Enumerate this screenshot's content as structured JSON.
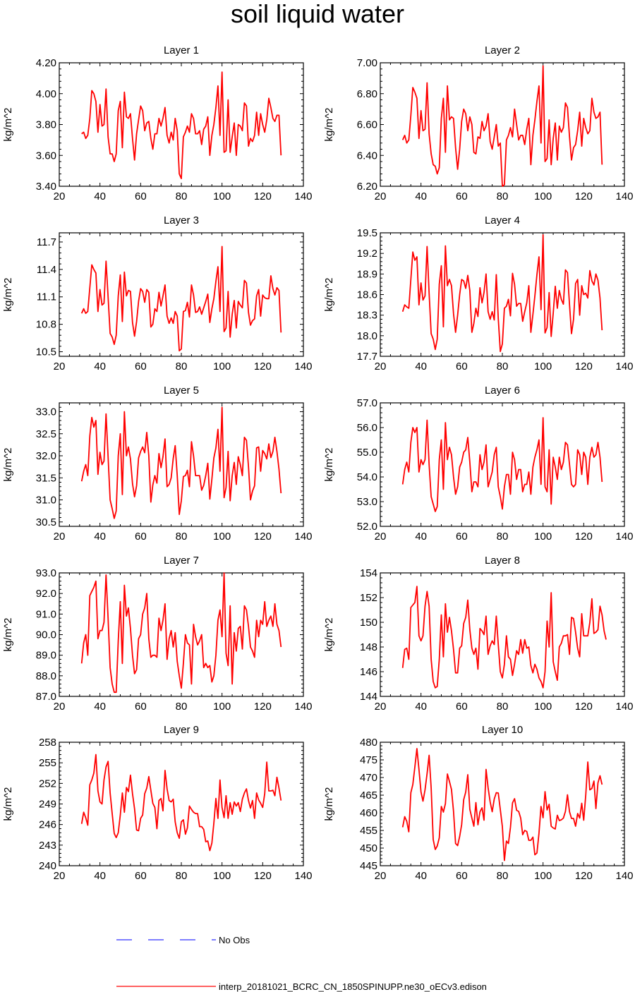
{
  "title": "soil liquid water",
  "legend": {
    "no_obs_label": "No Obs",
    "no_obs_color": "#3333ff",
    "model_label": "interp_20181021_BCRC_CN_1850SPINUPP.ne30_oECv3.edison",
    "model_color": "#ff0000"
  },
  "chart_data": [
    {
      "type": "line",
      "title": "Layer 1",
      "ylabel": "kg/m^2",
      "xlim": [
        20,
        140
      ],
      "ylim": [
        3.4,
        4.2
      ],
      "xticks": [
        "20",
        "40",
        "60",
        "80",
        "100",
        "120",
        "140"
      ],
      "yticks": [
        "3.40",
        "3.60",
        "3.80",
        "4.00",
        "4.20"
      ],
      "x_start": 31,
      "x_step": 1,
      "values": [
        3.74,
        3.75,
        3.71,
        3.73,
        3.84,
        4.02,
        4.0,
        3.95,
        3.75,
        3.93,
        3.79,
        3.8,
        4.03,
        3.72,
        3.61,
        3.61,
        3.56,
        3.61,
        3.89,
        3.95,
        3.65,
        4.01,
        3.85,
        3.84,
        3.87,
        3.71,
        3.57,
        3.74,
        3.83,
        3.92,
        3.89,
        3.76,
        3.81,
        3.82,
        3.71,
        3.64,
        3.74,
        3.74,
        3.84,
        3.79,
        3.84,
        3.91,
        3.73,
        3.68,
        3.75,
        3.7,
        3.84,
        3.76,
        3.48,
        3.45,
        3.72,
        3.75,
        3.79,
        3.75,
        3.87,
        3.84,
        3.74,
        3.74,
        3.76,
        3.67,
        3.77,
        3.79,
        3.85,
        3.6,
        3.73,
        3.8,
        3.91,
        4.05,
        3.73,
        4.14,
        3.62,
        3.63,
        3.96,
        3.62,
        3.72,
        3.81,
        3.6,
        3.8,
        3.79,
        3.76,
        3.94,
        3.92,
        3.66,
        3.71,
        3.69,
        3.73,
        3.88,
        3.73,
        3.87,
        3.8,
        3.75,
        3.83,
        3.97,
        3.91,
        3.84,
        3.82,
        3.86,
        3.86,
        3.6
      ]
    },
    {
      "type": "line",
      "title": "Layer 2",
      "ylabel": "kg/m^2",
      "xlim": [
        20,
        140
      ],
      "ylim": [
        6.2,
        7.0
      ],
      "xticks": [
        "20",
        "40",
        "60",
        "80",
        "100",
        "120",
        "140"
      ],
      "yticks": [
        "6.20",
        "6.40",
        "6.60",
        "6.80",
        "7.00"
      ],
      "x_start": 31,
      "x_step": 1,
      "values": [
        6.5,
        6.53,
        6.48,
        6.5,
        6.66,
        6.84,
        6.81,
        6.77,
        6.51,
        6.69,
        6.56,
        6.57,
        6.87,
        6.54,
        6.41,
        6.34,
        6.33,
        6.28,
        6.32,
        6.64,
        6.77,
        6.42,
        6.85,
        6.63,
        6.65,
        6.64,
        6.45,
        6.31,
        6.44,
        6.62,
        6.7,
        6.67,
        6.56,
        6.65,
        6.6,
        6.42,
        6.41,
        6.52,
        6.51,
        6.62,
        6.56,
        6.59,
        6.67,
        6.49,
        6.44,
        6.52,
        6.6,
        6.46,
        6.48,
        6.2,
        6.21,
        6.5,
        6.53,
        6.58,
        6.52,
        6.7,
        6.6,
        6.5,
        6.53,
        6.53,
        6.47,
        6.57,
        6.64,
        6.34,
        6.53,
        6.63,
        6.75,
        6.85,
        6.48,
        6.98,
        6.36,
        6.38,
        6.63,
        6.34,
        6.51,
        6.61,
        6.37,
        6.59,
        6.55,
        6.58,
        6.74,
        6.71,
        6.52,
        6.37,
        6.45,
        6.47,
        6.56,
        6.68,
        6.46,
        6.64,
        6.58,
        6.54,
        6.56,
        6.77,
        6.68,
        6.64,
        6.65,
        6.68,
        6.34
      ]
    },
    {
      "type": "line",
      "title": "Layer 3",
      "ylabel": "kg/m^2",
      "xlim": [
        20,
        140
      ],
      "ylim": [
        10.45,
        11.8
      ],
      "xticks": [
        "20",
        "40",
        "60",
        "80",
        "100",
        "120",
        "140"
      ],
      "yticks": [
        "10.5",
        "10.8",
        "11.1",
        "11.4",
        "11.7"
      ],
      "x_start": 31,
      "x_step": 1,
      "values": [
        10.92,
        10.97,
        10.92,
        10.94,
        11.2,
        11.45,
        11.4,
        11.36,
        10.94,
        11.18,
        11.01,
        11.03,
        11.49,
        11.1,
        10.7,
        10.66,
        10.58,
        10.68,
        11.11,
        11.34,
        10.83,
        11.37,
        11.11,
        11.17,
        11.16,
        10.82,
        10.67,
        10.83,
        11.05,
        11.19,
        11.16,
        11.04,
        11.18,
        11.15,
        10.77,
        10.8,
        10.97,
        10.94,
        11.15,
        11.0,
        11.11,
        11.23,
        10.89,
        10.81,
        10.87,
        10.81,
        10.94,
        10.89,
        10.51,
        10.53,
        10.94,
        10.95,
        11.04,
        10.88,
        11.23,
        11.12,
        10.93,
        10.94,
        10.99,
        10.91,
        10.98,
        11.05,
        11.13,
        10.82,
        10.97,
        11.08,
        11.27,
        11.43,
        10.94,
        11.65,
        10.72,
        10.76,
        11.16,
        10.66,
        10.91,
        11.06,
        10.76,
        11.05,
        11.01,
        10.98,
        11.28,
        11.25,
        10.93,
        10.79,
        10.84,
        10.86,
        11.11,
        11.18,
        10.89,
        11.12,
        11.09,
        11.08,
        11.08,
        11.33,
        11.19,
        11.12,
        11.2,
        11.17,
        10.71
      ]
    },
    {
      "type": "line",
      "title": "Layer 4",
      "ylabel": "kg/m^2",
      "xlim": [
        20,
        140
      ],
      "ylim": [
        17.7,
        19.5
      ],
      "xticks": [
        "20",
        "40",
        "60",
        "80",
        "100",
        "120",
        "140"
      ],
      "yticks": [
        "17.7",
        "18.0",
        "18.3",
        "18.6",
        "18.9",
        "19.2",
        "19.5"
      ],
      "x_start": 31,
      "x_step": 1,
      "values": [
        18.35,
        18.45,
        18.42,
        18.4,
        18.82,
        19.22,
        19.1,
        19.15,
        18.45,
        18.77,
        18.52,
        18.58,
        19.3,
        18.62,
        18.03,
        17.95,
        17.8,
        17.95,
        18.75,
        19.02,
        18.13,
        19.31,
        18.73,
        18.82,
        18.73,
        18.32,
        18.05,
        18.3,
        18.6,
        18.82,
        18.8,
        18.69,
        18.88,
        18.66,
        18.05,
        18.18,
        18.4,
        18.28,
        18.7,
        18.48,
        18.63,
        18.9,
        18.35,
        18.24,
        18.35,
        18.23,
        18.89,
        18.25,
        17.77,
        17.88,
        18.4,
        18.43,
        18.53,
        18.29,
        18.91,
        18.75,
        18.43,
        18.47,
        18.47,
        18.21,
        18.35,
        18.48,
        18.73,
        18.05,
        18.31,
        18.58,
        18.89,
        19.15,
        18.38,
        19.47,
        18.04,
        18.12,
        18.63,
        17.99,
        18.33,
        18.72,
        18.4,
        18.66,
        18.53,
        18.46,
        18.96,
        18.92,
        18.45,
        18.03,
        18.24,
        18.76,
        18.82,
        18.3,
        18.73,
        18.6,
        18.62,
        18.55,
        18.95,
        18.8,
        18.74,
        18.9,
        18.81,
        18.55,
        18.08
      ]
    },
    {
      "type": "line",
      "title": "Layer 5",
      "ylabel": "kg/m^2",
      "xlim": [
        20,
        140
      ],
      "ylim": [
        30.4,
        33.2
      ],
      "xticks": [
        "20",
        "40",
        "60",
        "80",
        "100",
        "120",
        "140"
      ],
      "yticks": [
        "30.5",
        "31.0",
        "31.5",
        "32.0",
        "32.5",
        "33.0"
      ],
      "x_start": 31,
      "x_step": 1,
      "values": [
        31.42,
        31.65,
        31.8,
        31.55,
        32.45,
        32.87,
        32.65,
        32.8,
        31.58,
        32.08,
        31.8,
        31.88,
        32.95,
        31.98,
        31.0,
        30.8,
        30.58,
        30.75,
        32.0,
        32.5,
        31.12,
        33.0,
        32.0,
        32.2,
        31.93,
        31.37,
        31.07,
        31.32,
        31.95,
        32.1,
        32.2,
        32.07,
        32.53,
        32.0,
        30.95,
        31.34,
        31.55,
        31.38,
        32.05,
        31.73,
        31.98,
        32.38,
        31.3,
        31.35,
        31.5,
        31.94,
        32.23,
        31.55,
        30.67,
        30.98,
        31.53,
        31.55,
        31.67,
        31.3,
        32.32,
        32.0,
        31.55,
        31.55,
        31.55,
        31.22,
        31.33,
        31.55,
        31.83,
        31.02,
        31.47,
        31.95,
        32.18,
        32.6,
        31.65,
        33.1,
        31.05,
        31.28,
        32.1,
        30.98,
        31.55,
        31.85,
        31.35,
        31.98,
        31.8,
        31.55,
        32.42,
        32.35,
        31.75,
        31.0,
        31.2,
        31.32,
        32.18,
        32.2,
        31.65,
        32.12,
        32.05,
        31.93,
        32.27,
        31.96,
        32.1,
        32.42,
        32.1,
        31.7,
        31.15
      ]
    },
    {
      "type": "line",
      "title": "Layer 6",
      "ylabel": "kg/m^2",
      "xlim": [
        20,
        140
      ],
      "ylim": [
        52.0,
        57.0
      ],
      "xticks": [
        "20",
        "40",
        "60",
        "80",
        "100",
        "120",
        "140"
      ],
      "yticks": [
        "52.0",
        "53.0",
        "54.0",
        "55.0",
        "56.0",
        "57.0"
      ],
      "x_start": 31,
      "x_step": 1,
      "values": [
        53.7,
        54.3,
        54.6,
        54.2,
        55.4,
        56.0,
        55.8,
        56.0,
        54.2,
        54.7,
        54.5,
        54.7,
        56.3,
        54.5,
        53.2,
        52.9,
        52.6,
        52.8,
        54.7,
        55.5,
        53.5,
        56.2,
        54.7,
        55.2,
        54.9,
        54.0,
        53.3,
        53.6,
        54.4,
        54.6,
        55.0,
        55.1,
        55.6,
        54.6,
        53.4,
        53.8,
        53.8,
        53.6,
        54.9,
        54.3,
        54.6,
        55.3,
        53.6,
        53.9,
        54.2,
        54.9,
        55.2,
        53.6,
        53.2,
        52.7,
        53.6,
        54.1,
        54.1,
        53.3,
        55.0,
        54.7,
        53.9,
        54.3,
        54.3,
        53.4,
        53.7,
        53.7,
        54.2,
        53.3,
        54.4,
        54.8,
        55.1,
        55.5,
        53.7,
        56.4,
        53.6,
        53.4,
        55.1,
        52.9,
        54.8,
        54.4,
        53.9,
        54.8,
        54.3,
        54.6,
        55.4,
        55.3,
        54.5,
        53.7,
        53.6,
        53.7,
        55.1,
        54.9,
        54.1,
        55.0,
        54.8,
        53.7,
        54.8,
        55.2,
        54.8,
        54.9,
        55.4,
        54.8,
        53.8
      ]
    },
    {
      "type": "line",
      "title": "Layer 7",
      "ylabel": "kg/m^2",
      "xlim": [
        20,
        140
      ],
      "ylim": [
        87.0,
        93.0
      ],
      "xticks": [
        "20",
        "40",
        "60",
        "80",
        "100",
        "120",
        "140"
      ],
      "yticks": [
        "87.0",
        "88.0",
        "89.0",
        "90.0",
        "91.0",
        "92.0",
        "93.0"
      ],
      "x_start": 31,
      "x_step": 1,
      "values": [
        88.6,
        89.6,
        90.0,
        89.0,
        91.9,
        92.1,
        92.3,
        92.6,
        89.8,
        90.2,
        90.2,
        90.6,
        92.9,
        90.8,
        88.4,
        87.6,
        87.2,
        87.2,
        89.7,
        91.6,
        88.6,
        92.4,
        90.9,
        91.3,
        90.3,
        89.0,
        88.1,
        88.3,
        89.8,
        90.0,
        91.0,
        91.3,
        92.0,
        89.8,
        88.9,
        89.0,
        89.0,
        88.9,
        90.8,
        90.2,
        90.7,
        91.5,
        88.8,
        89.8,
        90.2,
        89.4,
        90.1,
        88.7,
        88.0,
        87.4,
        88.6,
        90.0,
        89.6,
        89.5,
        87.6,
        90.5,
        89.9,
        89.5,
        89.7,
        90.0,
        88.4,
        88.6,
        88.4,
        88.5,
        87.7,
        88.0,
        89.0,
        90.7,
        91.2,
        89.9,
        93.0,
        89.1,
        88.5,
        91.4,
        87.6,
        90.1,
        89.2,
        90.3,
        90.4,
        89.3,
        91.4,
        91.2,
        90.4,
        89.4,
        89.2,
        88.9,
        90.7,
        89.9,
        90.7,
        90.5,
        91.6,
        90.4,
        90.7,
        90.9,
        90.4,
        91.5,
        90.5,
        90.2,
        89.4
      ]
    },
    {
      "type": "line",
      "title": "Layer 8",
      "ylabel": "kg/m^2",
      "xlim": [
        20,
        140
      ],
      "ylim": [
        144,
        154
      ],
      "xticks": [
        "20",
        "40",
        "60",
        "80",
        "100",
        "120",
        "140"
      ],
      "yticks": [
        "144",
        "146",
        "148",
        "150",
        "152",
        "154"
      ],
      "x_start": 31,
      "x_step": 1,
      "values": [
        146.3,
        147.8,
        147.9,
        147.0,
        151.2,
        151.4,
        151.6,
        152.9,
        148.9,
        148.5,
        148.9,
        151.3,
        152.5,
        151.3,
        147.0,
        145.2,
        144.7,
        144.8,
        147.0,
        150.6,
        147.2,
        151.5,
        149.2,
        150.4,
        149.3,
        147.8,
        145.9,
        145.9,
        147.9,
        148.1,
        149.9,
        150.4,
        151.8,
        149.4,
        147.9,
        147.4,
        147.9,
        146.2,
        149.5,
        149.3,
        149.0,
        150.5,
        147.4,
        148.1,
        148.5,
        148.2,
        150.5,
        148.2,
        146.0,
        145.5,
        146.6,
        148.9,
        147.2,
        147.0,
        145.7,
        146.6,
        147.7,
        147.4,
        148.6,
        147.5,
        148.6,
        147.9,
        148.0,
        146.5,
        145.9,
        146.6,
        146.2,
        145.5,
        145.2,
        144.7,
        146.0,
        150.1,
        148.0,
        152.4,
        146.8,
        146.0,
        145.3,
        148.0,
        148.3,
        148.9,
        148.9,
        149.0,
        147.4,
        150.4,
        150.3,
        149.2,
        147.9,
        147.2,
        150.7,
        148.9,
        148.9,
        148.9,
        150.0,
        151.9,
        149.1,
        149.2,
        149.4,
        151.3,
        150.6,
        149.3,
        148.6
      ]
    },
    {
      "type": "line",
      "title": "Layer 9",
      "ylabel": "kg/m^2",
      "xlim": [
        20,
        140
      ],
      "ylim": [
        240,
        258
      ],
      "xticks": [
        "20",
        "40",
        "60",
        "80",
        "100",
        "120",
        "140"
      ],
      "yticks": [
        "240",
        "243",
        "246",
        "249",
        "252",
        "255",
        "258"
      ],
      "x_start": 31,
      "x_step": 1,
      "values": [
        246.1,
        247.8,
        247.0,
        245.9,
        251.8,
        252.5,
        253.5,
        256.2,
        250.9,
        249.3,
        249.0,
        252.5,
        254.4,
        255.2,
        250.6,
        247.6,
        244.7,
        244.1,
        244.8,
        247.4,
        250.6,
        247.8,
        251.4,
        250.8,
        253.2,
        250.5,
        248.3,
        245.2,
        245.1,
        246.9,
        247.4,
        250.5,
        251.3,
        253.0,
        251.0,
        249.1,
        248.5,
        245.4,
        249.5,
        249.8,
        248.0,
        253.9,
        251.2,
        249.5,
        249.3,
        249.7,
        246.4,
        244.8,
        244.0,
        246.4,
        246.7,
        244.6,
        245.5,
        248.7,
        248.2,
        247.8,
        247.6,
        247.6,
        245.7,
        245.7,
        245.3,
        243.5,
        243.6,
        242.2,
        243.3,
        246.2,
        249.8,
        246.9,
        252.5,
        248.5,
        247.0,
        250.2,
        246.9,
        249.2,
        247.5,
        249.3,
        248.7,
        249.2,
        247.9,
        249.7,
        250.6,
        251.2,
        249.5,
        248.4,
        249.5,
        246.9,
        250.6,
        249.6,
        249.1,
        248.5,
        250.5,
        255.1,
        250.9,
        250.9,
        251.0,
        250.2,
        252.9,
        251.3,
        249.5
      ]
    },
    {
      "type": "line",
      "title": "Layer 10",
      "ylabel": "kg/m^2",
      "xlim": [
        20,
        140
      ],
      "ylim": [
        445,
        480
      ],
      "xticks": [
        "20",
        "40",
        "60",
        "80",
        "100",
        "120",
        "140"
      ],
      "yticks": [
        "445",
        "450",
        "455",
        "460",
        "465",
        "470",
        "475",
        "480"
      ],
      "x_start": 31,
      "x_step": 1,
      "values": [
        455.9,
        458.9,
        457.6,
        454.6,
        465.7,
        468.0,
        473.0,
        478.2,
        472.3,
        465.9,
        463.3,
        466.5,
        471.1,
        476.3,
        467.0,
        452.4,
        449.6,
        450.6,
        452.9,
        461.8,
        460.2,
        462.6,
        471.0,
        468.9,
        466.6,
        460.4,
        451.3,
        450.7,
        453.3,
        456.6,
        463.7,
        465.9,
        470.8,
        461.0,
        458.5,
        456.2,
        462.9,
        456.6,
        460.3,
        461.4,
        457.9,
        472.3,
        467.1,
        463.1,
        460.3,
        463.9,
        465.7,
        465.6,
        460.9,
        456.1,
        446.5,
        452.0,
        451.3,
        455.9,
        462.8,
        464.0,
        460.7,
        460.4,
        458.5,
        453.8,
        455.0,
        454.7,
        452.2,
        452.2,
        453.1,
        448.1,
        448.6,
        454.2,
        461.8,
        458.6,
        466.0,
        460.8,
        462.4,
        456.2,
        455.7,
        455.4,
        459.3,
        457.8,
        458.0,
        458.5,
        460.4,
        465.1,
        460.3,
        458.4,
        458.4,
        456.2,
        459.8,
        458.5,
        462.7,
        457.9,
        465.0,
        474.4,
        466.5,
        466.9,
        469.0,
        461.2,
        468.5,
        470.5,
        468.0
      ]
    }
  ]
}
